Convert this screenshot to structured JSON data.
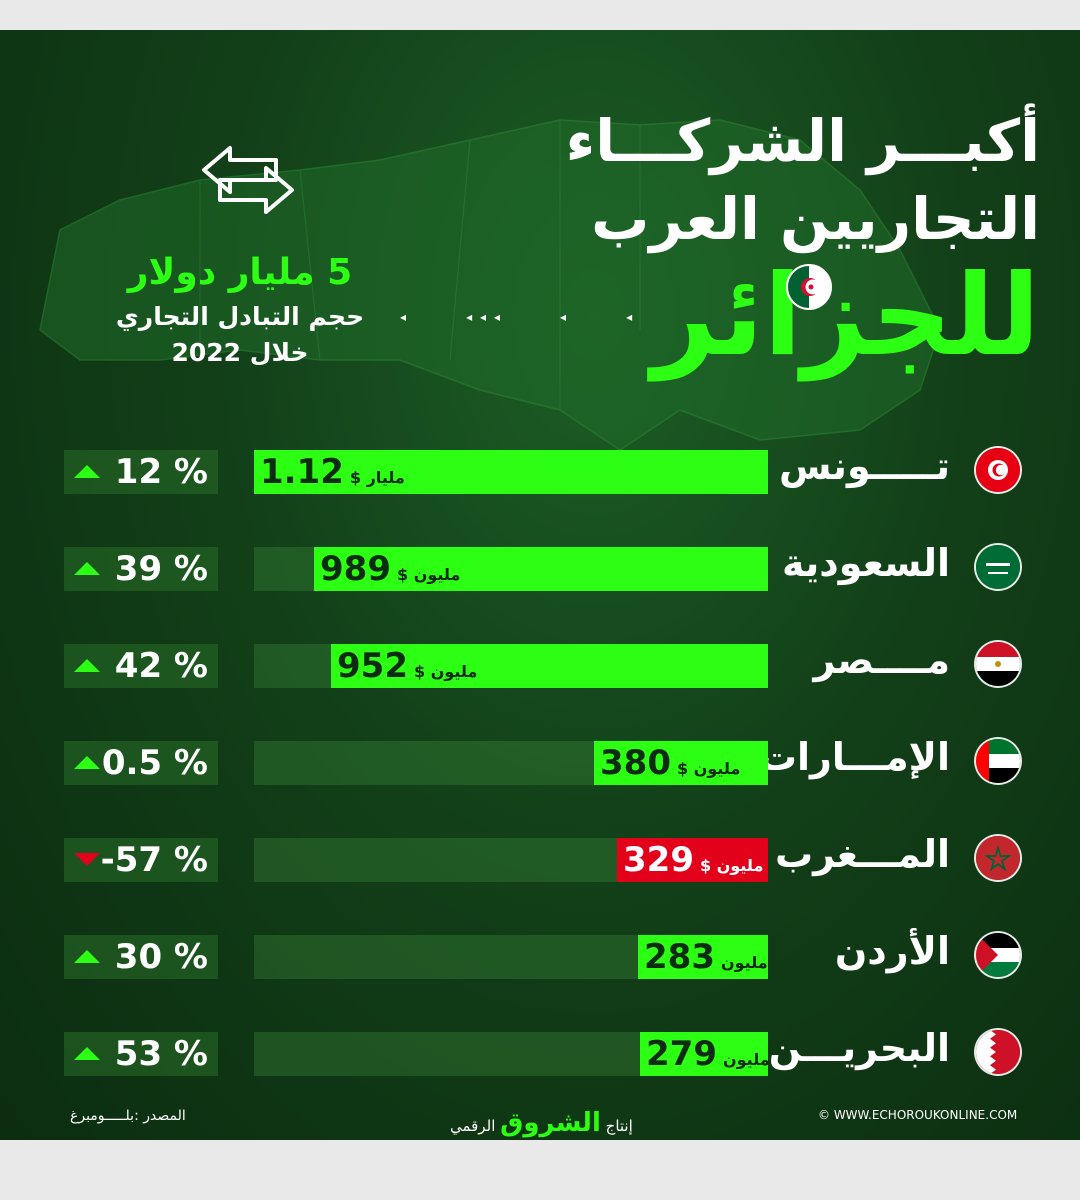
{
  "header": {
    "title_line1": "أكبـــر الشركـــاء",
    "title_line2": "التجاريين العرب",
    "title_line3": "للجزائر"
  },
  "total": {
    "value": "5 مليار دولار",
    "label": "حجم التبادل التجاري",
    "year": "خلال 2022"
  },
  "rows": [
    {
      "country": "تـــــونس",
      "flag": "tunisia-flag-icon",
      "value_text": "1.12",
      "unit": "مليار $",
      "change": "12 %",
      "trend": "up"
    },
    {
      "country": "السعودية",
      "flag": "saudi-flag-icon",
      "value_text": "989",
      "unit": "مليون $",
      "change": "39 %",
      "trend": "up"
    },
    {
      "country": "مــــصر",
      "flag": "egypt-flag-icon",
      "value_text": "952",
      "unit": "مليون $",
      "change": "42 %",
      "trend": "up"
    },
    {
      "country": "الإمـــارات",
      "flag": "uae-flag-icon",
      "value_text": "380",
      "unit": "مليون $",
      "change": "0.5 %",
      "trend": "up"
    },
    {
      "country": "المـــغرب",
      "flag": "morocco-flag-icon",
      "value_text": "329",
      "unit": "مليون $",
      "change": "-57 %",
      "trend": "down"
    },
    {
      "country": "الأردن",
      "flag": "jordan-flag-icon",
      "value_text": "283",
      "unit": "مليون",
      "change": "30 %",
      "trend": "up"
    },
    {
      "country": "البحريـــن",
      "flag": "bahrain-flag-icon",
      "value_text": "279",
      "unit": "مليون",
      "change": "53 %",
      "trend": "up"
    }
  ],
  "chart_data": {
    "type": "bar",
    "categories": [
      "تـــــونس",
      "السعودية",
      "مــــصر",
      "الإمـــارات",
      "المـــغرب",
      "الأردن",
      "البحريـــن"
    ],
    "values": [
      1120,
      989,
      952,
      380,
      329,
      283,
      279
    ],
    "changes_percent": [
      12,
      39,
      42,
      0.5,
      -57,
      30,
      53
    ],
    "max": 1120
  },
  "footer": {
    "source": "المصدر :بلـــــومبرغ",
    "production_prefix": "إنتاج",
    "production_brand": "الشروق",
    "production_suffix": "الرقمي",
    "website": "© WWW.ECHOROUKONLINE.COM"
  },
  "colors": {
    "accent": "#2dff14",
    "negative": "#e3001b",
    "background": "#0b2c10"
  }
}
